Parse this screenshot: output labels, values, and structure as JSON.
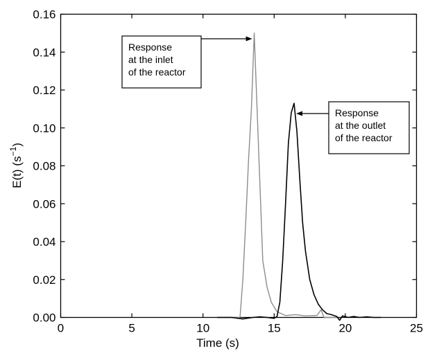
{
  "chart_data": {
    "type": "line",
    "xlabel": "Time (s)",
    "ylabel_main": "E(t) (s",
    "ylabel_sup": "−1",
    "ylabel_close": ")",
    "xlim": [
      0,
      25
    ],
    "ylim": [
      0,
      0.16
    ],
    "x_ticks": [
      "0",
      "5",
      "10",
      "15",
      "20",
      "25"
    ],
    "y_ticks": [
      "0.00",
      "0.02",
      "0.04",
      "0.06",
      "0.08",
      "0.10",
      "0.12",
      "0.14",
      "0.16"
    ],
    "grid": false,
    "series": [
      {
        "color": "#8c8c8c",
        "points": [
          [
            11.0,
            0.0
          ],
          [
            12.6,
            0.0
          ],
          [
            12.8,
            0.02
          ],
          [
            13.0,
            0.05
          ],
          [
            13.2,
            0.083
          ],
          [
            13.4,
            0.11
          ],
          [
            13.6,
            0.15
          ],
          [
            13.8,
            0.11
          ],
          [
            14.0,
            0.07
          ],
          [
            14.2,
            0.03
          ],
          [
            14.5,
            0.016
          ],
          [
            14.8,
            0.008
          ],
          [
            15.2,
            0.003
          ],
          [
            15.8,
            0.001
          ],
          [
            16.5,
            0.0015
          ],
          [
            17.2,
            0.0008
          ],
          [
            18.0,
            0.001
          ],
          [
            18.3,
            0.004
          ],
          [
            18.5,
            0.0
          ],
          [
            19.5,
            0.0
          ]
        ]
      },
      {
        "color": "#000000",
        "points": [
          [
            11.0,
            0.0
          ],
          [
            12.0,
            0.0
          ],
          [
            12.8,
            -0.0008
          ],
          [
            13.5,
            0.0
          ],
          [
            14.0,
            0.0003
          ],
          [
            14.5,
            0.0
          ],
          [
            15.0,
            -0.0005
          ],
          [
            15.2,
            0.0005
          ],
          [
            15.4,
            0.008
          ],
          [
            15.6,
            0.03
          ],
          [
            15.8,
            0.06
          ],
          [
            16.0,
            0.092
          ],
          [
            16.2,
            0.108
          ],
          [
            16.4,
            0.113
          ],
          [
            16.6,
            0.098
          ],
          [
            16.8,
            0.073
          ],
          [
            17.0,
            0.05
          ],
          [
            17.2,
            0.035
          ],
          [
            17.5,
            0.02
          ],
          [
            17.8,
            0.012
          ],
          [
            18.1,
            0.007
          ],
          [
            18.4,
            0.004
          ],
          [
            18.7,
            0.002
          ],
          [
            19.0,
            0.0015
          ],
          [
            19.4,
            0.0005
          ],
          [
            19.6,
            -0.0015
          ],
          [
            19.8,
            0.0008
          ],
          [
            20.2,
            0.0
          ],
          [
            20.6,
            0.0005
          ],
          [
            21.0,
            0.0
          ],
          [
            21.5,
            0.0003
          ],
          [
            22.0,
            0.0
          ],
          [
            22.5,
            0.0
          ]
        ]
      }
    ],
    "annotations": [
      {
        "lines": [
          "Response",
          "at the inlet",
          "of the reactor"
        ],
        "arrow_to": [
          13.6,
          0.1465
        ]
      },
      {
        "lines": [
          "Response",
          "at the outlet",
          "of the reactor"
        ],
        "arrow_to": [
          16.4,
          0.1105
        ]
      }
    ]
  }
}
